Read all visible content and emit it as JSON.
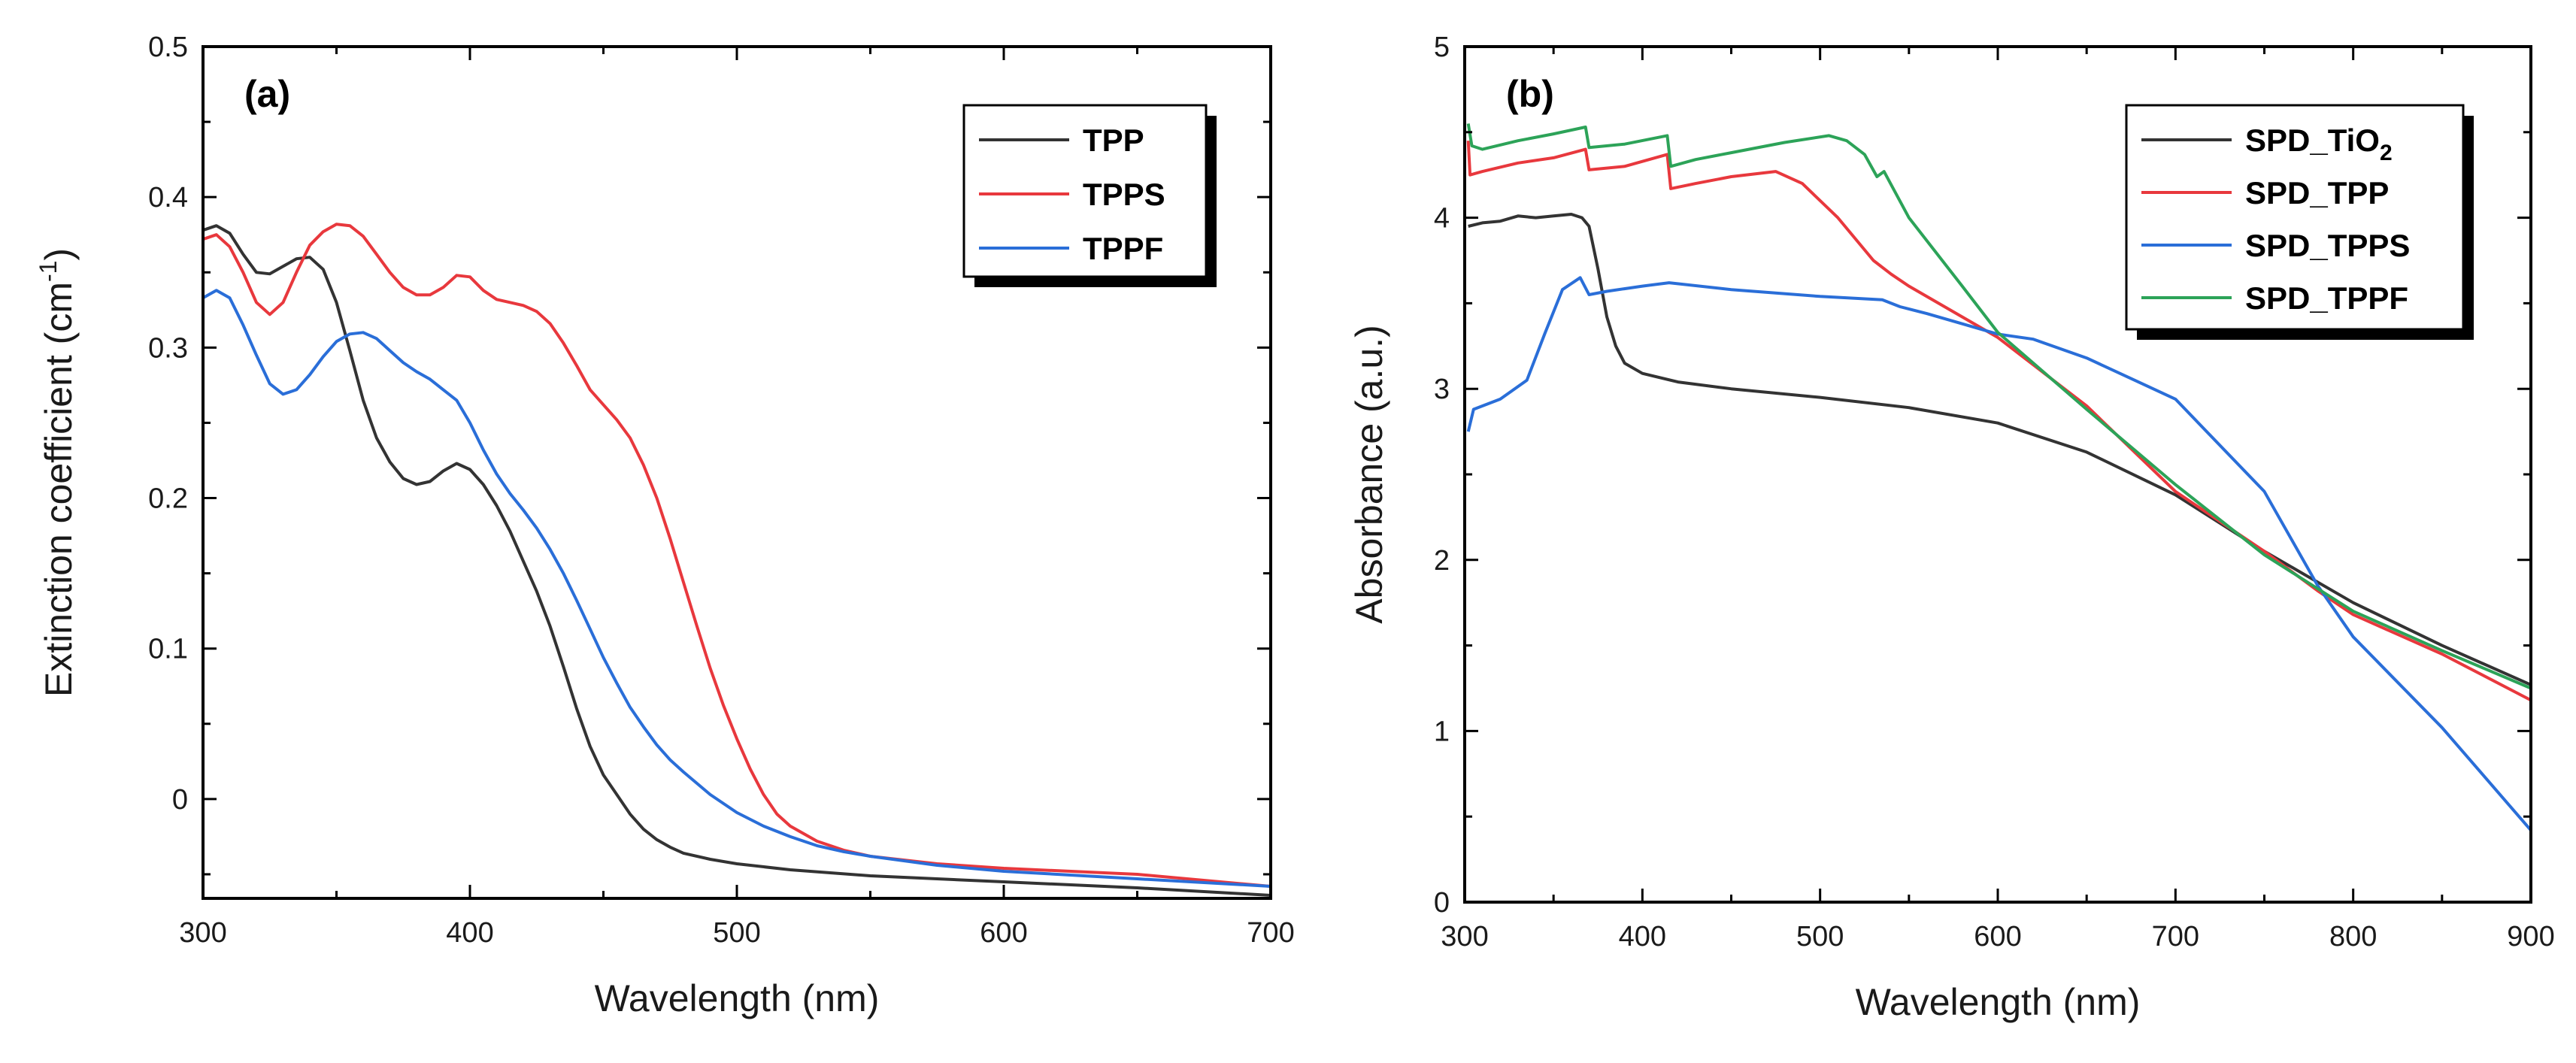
{
  "chart_data": [
    {
      "type": "line",
      "panel_label": "(a)",
      "xlabel": "Wavelength (nm)",
      "ylabel_main": "Extinction coefficient (cm",
      "ylabel_sup": "-1",
      "ylabel_end": ")",
      "xlim": [
        300,
        700
      ],
      "ylim": [
        -0.066,
        0.5
      ],
      "xticks": [
        300,
        400,
        500,
        600,
        700
      ],
      "yticks": [
        0,
        0.1,
        0.2,
        0.3,
        0.4,
        0.5
      ],
      "ytick_labels": [
        "0",
        "0.1",
        "0.2",
        "0.3",
        "0.4",
        "0.5"
      ],
      "grid": false,
      "legend_position": "top-right",
      "series": [
        {
          "name": "TPP",
          "color": "#333333",
          "points": [
            [
              300,
              0.378
            ],
            [
              305,
              0.381
            ],
            [
              310,
              0.376
            ],
            [
              315,
              0.362
            ],
            [
              320,
              0.35
            ],
            [
              325,
              0.349
            ],
            [
              330,
              0.354
            ],
            [
              335,
              0.359
            ],
            [
              340,
              0.36
            ],
            [
              345,
              0.352
            ],
            [
              350,
              0.33
            ],
            [
              355,
              0.298
            ],
            [
              360,
              0.265
            ],
            [
              365,
              0.24
            ],
            [
              370,
              0.224
            ],
            [
              375,
              0.213
            ],
            [
              380,
              0.209
            ],
            [
              385,
              0.211
            ],
            [
              390,
              0.218
            ],
            [
              395,
              0.223
            ],
            [
              400,
              0.219
            ],
            [
              405,
              0.209
            ],
            [
              410,
              0.195
            ],
            [
              415,
              0.178
            ],
            [
              420,
              0.158
            ],
            [
              425,
              0.138
            ],
            [
              430,
              0.115
            ],
            [
              435,
              0.088
            ],
            [
              440,
              0.06
            ],
            [
              445,
              0.035
            ],
            [
              450,
              0.016
            ],
            [
              455,
              0.003
            ],
            [
              460,
              -0.01
            ],
            [
              465,
              -0.02
            ],
            [
              470,
              -0.027
            ],
            [
              475,
              -0.032
            ],
            [
              480,
              -0.036
            ],
            [
              490,
              -0.04
            ],
            [
              500,
              -0.043
            ],
            [
              520,
              -0.047
            ],
            [
              550,
              -0.051
            ],
            [
              600,
              -0.055
            ],
            [
              650,
              -0.059
            ],
            [
              700,
              -0.064
            ]
          ]
        },
        {
          "name": "TPPS",
          "color": "#e8383d",
          "points": [
            [
              300,
              0.372
            ],
            [
              305,
              0.375
            ],
            [
              310,
              0.367
            ],
            [
              315,
              0.35
            ],
            [
              320,
              0.33
            ],
            [
              325,
              0.322
            ],
            [
              330,
              0.33
            ],
            [
              335,
              0.35
            ],
            [
              340,
              0.368
            ],
            [
              345,
              0.377
            ],
            [
              350,
              0.382
            ],
            [
              355,
              0.381
            ],
            [
              360,
              0.374
            ],
            [
              365,
              0.362
            ],
            [
              370,
              0.35
            ],
            [
              375,
              0.34
            ],
            [
              380,
              0.335
            ],
            [
              385,
              0.335
            ],
            [
              390,
              0.34
            ],
            [
              395,
              0.348
            ],
            [
              400,
              0.347
            ],
            [
              405,
              0.338
            ],
            [
              410,
              0.332
            ],
            [
              415,
              0.33
            ],
            [
              420,
              0.328
            ],
            [
              425,
              0.324
            ],
            [
              430,
              0.316
            ],
            [
              435,
              0.303
            ],
            [
              440,
              0.288
            ],
            [
              445,
              0.272
            ],
            [
              450,
              0.262
            ],
            [
              455,
              0.252
            ],
            [
              460,
              0.24
            ],
            [
              465,
              0.222
            ],
            [
              470,
              0.2
            ],
            [
              475,
              0.173
            ],
            [
              480,
              0.144
            ],
            [
              485,
              0.115
            ],
            [
              490,
              0.087
            ],
            [
              495,
              0.062
            ],
            [
              500,
              0.04
            ],
            [
              505,
              0.02
            ],
            [
              510,
              0.003
            ],
            [
              515,
              -0.01
            ],
            [
              520,
              -0.018
            ],
            [
              530,
              -0.028
            ],
            [
              540,
              -0.034
            ],
            [
              550,
              -0.038
            ],
            [
              575,
              -0.043
            ],
            [
              600,
              -0.046
            ],
            [
              650,
              -0.05
            ],
            [
              700,
              -0.058
            ]
          ]
        },
        {
          "name": "TPPF",
          "color": "#2a6ed8",
          "points": [
            [
              300,
              0.333
            ],
            [
              305,
              0.338
            ],
            [
              310,
              0.333
            ],
            [
              315,
              0.315
            ],
            [
              320,
              0.295
            ],
            [
              325,
              0.276
            ],
            [
              330,
              0.269
            ],
            [
              335,
              0.272
            ],
            [
              340,
              0.282
            ],
            [
              345,
              0.294
            ],
            [
              350,
              0.304
            ],
            [
              355,
              0.309
            ],
            [
              360,
              0.31
            ],
            [
              365,
              0.306
            ],
            [
              370,
              0.298
            ],
            [
              375,
              0.29
            ],
            [
              380,
              0.284
            ],
            [
              385,
              0.279
            ],
            [
              390,
              0.272
            ],
            [
              395,
              0.265
            ],
            [
              400,
              0.25
            ],
            [
              405,
              0.232
            ],
            [
              410,
              0.216
            ],
            [
              415,
              0.203
            ],
            [
              420,
              0.192
            ],
            [
              425,
              0.18
            ],
            [
              430,
              0.166
            ],
            [
              435,
              0.15
            ],
            [
              440,
              0.132
            ],
            [
              445,
              0.113
            ],
            [
              450,
              0.094
            ],
            [
              455,
              0.077
            ],
            [
              460,
              0.061
            ],
            [
              465,
              0.048
            ],
            [
              470,
              0.036
            ],
            [
              475,
              0.026
            ],
            [
              480,
              0.018
            ],
            [
              490,
              0.003
            ],
            [
              500,
              -0.009
            ],
            [
              510,
              -0.018
            ],
            [
              520,
              -0.025
            ],
            [
              530,
              -0.031
            ],
            [
              540,
              -0.035
            ],
            [
              550,
              -0.038
            ],
            [
              575,
              -0.044
            ],
            [
              600,
              -0.048
            ],
            [
              650,
              -0.053
            ],
            [
              700,
              -0.058
            ]
          ]
        }
      ]
    },
    {
      "type": "line",
      "panel_label": "(b)",
      "xlabel": "Wavelength (nm)",
      "ylabel": "Absorbance  (a.u.)",
      "xlim": [
        300,
        900
      ],
      "ylim": [
        0,
        5
      ],
      "xticks": [
        300,
        400,
        500,
        600,
        700,
        800,
        900
      ],
      "yticks": [
        0,
        1,
        2,
        3,
        4,
        5
      ],
      "ytick_labels": [
        "0",
        "1",
        "2",
        "3",
        "4",
        "5"
      ],
      "grid": false,
      "legend_position": "top-right",
      "series": [
        {
          "name": "SPD_TiO2",
          "label_main": "SPD_TiO",
          "label_sub": "2",
          "color": "#333333",
          "points": [
            [
              302,
              3.95
            ],
            [
              310,
              3.97
            ],
            [
              320,
              3.98
            ],
            [
              330,
              4.01
            ],
            [
              340,
              4.0
            ],
            [
              350,
              4.01
            ],
            [
              360,
              4.02
            ],
            [
              366,
              4.0
            ],
            [
              370,
              3.95
            ],
            [
              375,
              3.7
            ],
            [
              380,
              3.42
            ],
            [
              385,
              3.25
            ],
            [
              390,
              3.15
            ],
            [
              400,
              3.09
            ],
            [
              420,
              3.04
            ],
            [
              450,
              3.0
            ],
            [
              500,
              2.95
            ],
            [
              550,
              2.89
            ],
            [
              600,
              2.8
            ],
            [
              650,
              2.63
            ],
            [
              700,
              2.38
            ],
            [
              750,
              2.05
            ],
            [
              800,
              1.75
            ],
            [
              850,
              1.5
            ],
            [
              900,
              1.27
            ]
          ]
        },
        {
          "name": "SPD_TPP",
          "color": "#e8383d",
          "points": [
            [
              302,
              4.45
            ],
            [
              303,
              4.25
            ],
            [
              310,
              4.27
            ],
            [
              330,
              4.32
            ],
            [
              350,
              4.35
            ],
            [
              368,
              4.4
            ],
            [
              370,
              4.28
            ],
            [
              390,
              4.3
            ],
            [
              414,
              4.37
            ],
            [
              416,
              4.17
            ],
            [
              430,
              4.2
            ],
            [
              450,
              4.24
            ],
            [
              475,
              4.27
            ],
            [
              490,
              4.2
            ],
            [
              510,
              4.0
            ],
            [
              530,
              3.75
            ],
            [
              540,
              3.67
            ],
            [
              550,
              3.6
            ],
            [
              600,
              3.3
            ],
            [
              650,
              2.9
            ],
            [
              700,
              2.4
            ],
            [
              750,
              2.05
            ],
            [
              780,
              1.82
            ],
            [
              800,
              1.68
            ],
            [
              850,
              1.45
            ],
            [
              900,
              1.18
            ]
          ]
        },
        {
          "name": "SPD_TPPS",
          "color": "#2a6ed8",
          "points": [
            [
              302,
              2.75
            ],
            [
              305,
              2.88
            ],
            [
              320,
              2.94
            ],
            [
              335,
              3.05
            ],
            [
              345,
              3.32
            ],
            [
              355,
              3.58
            ],
            [
              365,
              3.65
            ],
            [
              370,
              3.55
            ],
            [
              380,
              3.57
            ],
            [
              400,
              3.6
            ],
            [
              415,
              3.62
            ],
            [
              450,
              3.58
            ],
            [
              500,
              3.54
            ],
            [
              535,
              3.52
            ],
            [
              545,
              3.48
            ],
            [
              560,
              3.44
            ],
            [
              580,
              3.38
            ],
            [
              600,
              3.32
            ],
            [
              620,
              3.29
            ],
            [
              650,
              3.18
            ],
            [
              700,
              2.94
            ],
            [
              750,
              2.4
            ],
            [
              780,
              1.85
            ],
            [
              800,
              1.55
            ],
            [
              850,
              1.02
            ],
            [
              900,
              0.42
            ]
          ]
        },
        {
          "name": "SPD_TPPF",
          "color": "#2ca358",
          "points": [
            [
              302,
              4.55
            ],
            [
              304,
              4.42
            ],
            [
              310,
              4.4
            ],
            [
              330,
              4.45
            ],
            [
              350,
              4.49
            ],
            [
              368,
              4.53
            ],
            [
              370,
              4.41
            ],
            [
              390,
              4.43
            ],
            [
              414,
              4.48
            ],
            [
              416,
              4.3
            ],
            [
              430,
              4.34
            ],
            [
              450,
              4.38
            ],
            [
              480,
              4.44
            ],
            [
              505,
              4.48
            ],
            [
              515,
              4.45
            ],
            [
              525,
              4.37
            ],
            [
              532,
              4.24
            ],
            [
              536,
              4.27
            ],
            [
              550,
              4.0
            ],
            [
              580,
              3.6
            ],
            [
              600,
              3.33
            ],
            [
              650,
              2.88
            ],
            [
              700,
              2.44
            ],
            [
              750,
              2.03
            ],
            [
              800,
              1.7
            ],
            [
              850,
              1.47
            ],
            [
              900,
              1.25
            ]
          ]
        }
      ]
    }
  ]
}
